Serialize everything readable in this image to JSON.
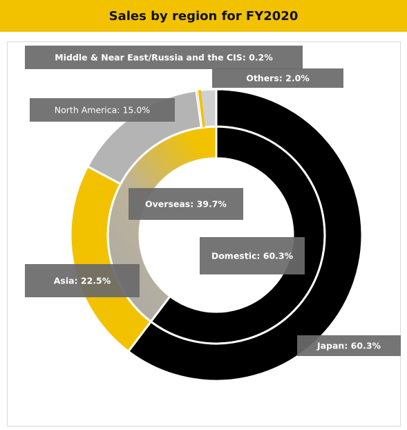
{
  "title": "Sales by region for FY2020",
  "chart_data": {
    "type": "pie",
    "subtype": "nested-donut",
    "title": "Sales by region for FY2020",
    "colors": {
      "black": "#000000",
      "yellow": "#f2c200",
      "gray": "#b4b4b4",
      "light_gray": "#d0d0d0",
      "label_bg": "#6b6b6b",
      "title_bar": "#f2c200"
    },
    "series": [
      {
        "ring": "inner",
        "slices": [
          {
            "label": "Domestic: 60.3%",
            "value": 60.3,
            "color": "#000000"
          },
          {
            "label": "Overseas: 39.7%",
            "value": 39.7,
            "color": "#b4b4b4",
            "gradient_to": "#f2c200"
          }
        ]
      },
      {
        "ring": "outer",
        "slices": [
          {
            "label": "Japan: 60.3%",
            "value": 60.3,
            "color": "#000000"
          },
          {
            "label": "Asia: 22.5%",
            "value": 22.5,
            "color": "#f2c200"
          },
          {
            "label": "North America: 15.0%",
            "value": 15.0,
            "color": "#b4b4b4"
          },
          {
            "label": "Middle & Near East/Russia and the CIS: 0.2%",
            "value": 0.2,
            "color": "#b4b4b4"
          },
          {
            "label": "Others: 2.0%",
            "value": 2.0,
            "color": "#d0d0d0",
            "edge_color": "#f2c200"
          }
        ]
      }
    ]
  }
}
